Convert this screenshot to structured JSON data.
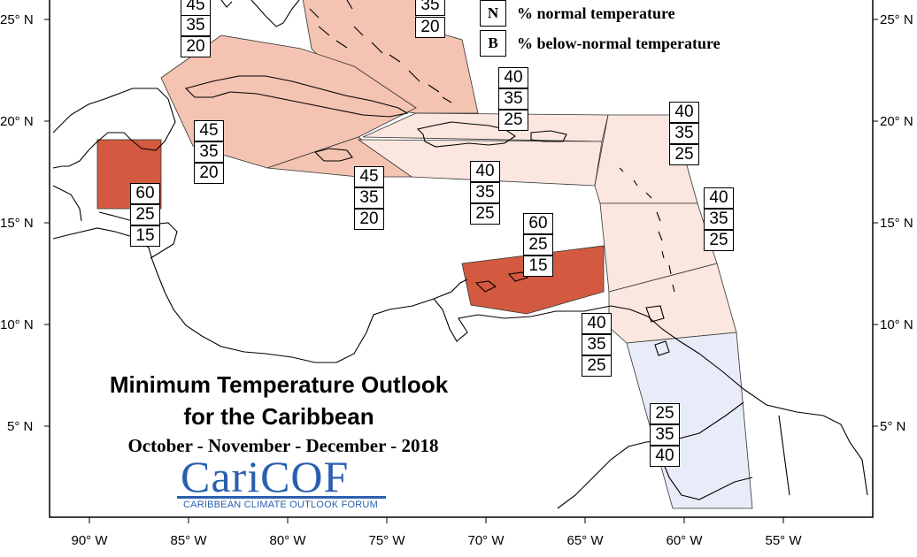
{
  "title": {
    "line1": "Minimum Temperature Outlook",
    "line2": "for the Caribbean",
    "season": "October - November - December - 2018"
  },
  "logo": {
    "name": "CariCOF",
    "subtitle": "CARIBBEAN CLIMATE OUTLOOK FORUM"
  },
  "legend": {
    "items": [
      {
        "key": "N",
        "label": "% normal temperature"
      },
      {
        "key": "B",
        "label": "% below-normal temperature"
      }
    ]
  },
  "axes": {
    "lat_labels": [
      "25° N",
      "20° N",
      "15° N",
      "10° N",
      "5° N"
    ],
    "lon_labels": [
      "90° W",
      "85° W",
      "80° W",
      "75° W",
      "70° W",
      "65° W",
      "60° W",
      "55° W"
    ]
  },
  "colors": {
    "strong_above": "#d35a40",
    "moderate_above": "#f4c3b1",
    "slight_above": "#fbe7df",
    "below": "#e8ecf8"
  },
  "regions": [
    {
      "id": "bahamas-n",
      "values": [
        "45",
        "35",
        "20"
      ]
    },
    {
      "id": "turks-caicos",
      "values": [
        "35",
        "20"
      ]
    },
    {
      "id": "cuba",
      "values": [
        "45",
        "35",
        "20"
      ]
    },
    {
      "id": "cayman-jamaica",
      "values": [
        "45",
        "35",
        "20"
      ]
    },
    {
      "id": "hispaniola-n",
      "values": [
        "40",
        "35",
        "25"
      ]
    },
    {
      "id": "hispaniola-s",
      "values": [
        "40",
        "35",
        "25"
      ]
    },
    {
      "id": "leeward-islands",
      "values": [
        "40",
        "35",
        "25"
      ]
    },
    {
      "id": "windward-islands",
      "values": [
        "40",
        "35",
        "25"
      ]
    },
    {
      "id": "belize",
      "values": [
        "60",
        "25",
        "15"
      ]
    },
    {
      "id": "abc-islands",
      "values": [
        "60",
        "25",
        "15"
      ]
    },
    {
      "id": "trinidad",
      "values": [
        "40",
        "35",
        "25"
      ]
    },
    {
      "id": "guianas",
      "values": [
        "25",
        "35",
        "40"
      ]
    }
  ]
}
